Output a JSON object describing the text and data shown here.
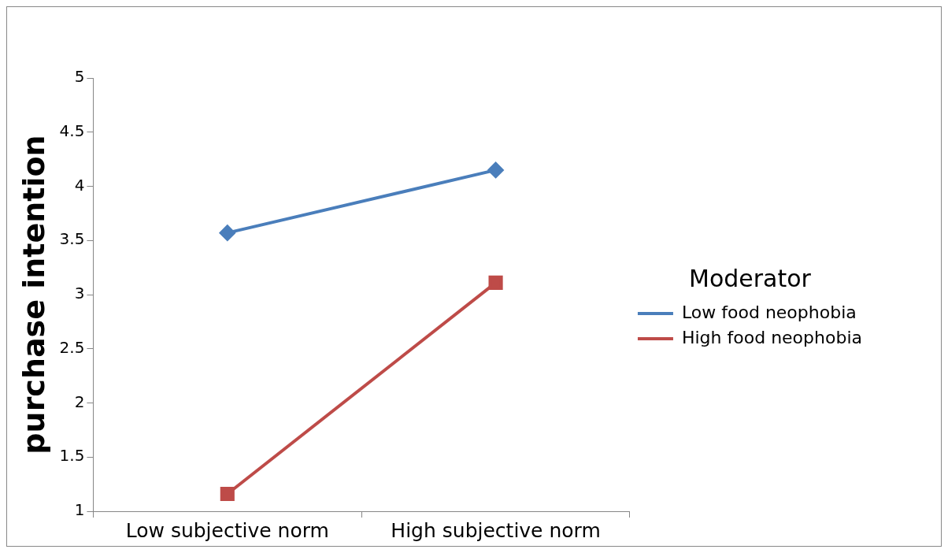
{
  "chart_data": {
    "type": "line",
    "ylabel": "purchase intention",
    "legend_title": "Moderator",
    "categories": [
      "Low subjective norm",
      "High subjective norm"
    ],
    "series": [
      {
        "name": "Low food neophobia",
        "color": "#4a7ebb",
        "values": [
          3.57,
          4.15
        ],
        "marker": "diamond"
      },
      {
        "name": "High food neophobia",
        "color": "#be4b48",
        "values": [
          1.16,
          3.11
        ],
        "marker": "square"
      }
    ],
    "ylim": [
      1,
      5
    ],
    "yticks": [
      1,
      1.5,
      2,
      2.5,
      3,
      3.5,
      4,
      4.5,
      5
    ],
    "grid": false,
    "legend": "right",
    "line_style": "solid"
  }
}
